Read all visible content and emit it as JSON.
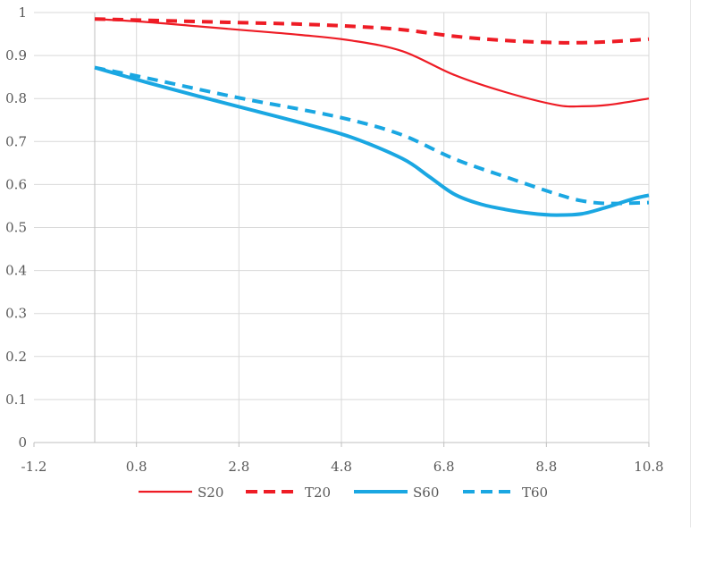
{
  "chart_data": {
    "type": "line",
    "title": "",
    "xlabel": "",
    "ylabel": "",
    "xlim": [
      -1.2,
      10.8
    ],
    "ylim": [
      0,
      1
    ],
    "x_ticks": [
      -1.2,
      0.8,
      2.8,
      4.8,
      6.8,
      8.8,
      10.8
    ],
    "x_tick_labels": [
      "-1.2",
      "0.8",
      "2.8",
      "4.8",
      "6.8",
      "8.8",
      "10.8"
    ],
    "y_ticks": [
      0,
      0.1,
      0.2,
      0.3,
      0.4,
      0.5,
      0.6,
      0.7,
      0.8,
      0.9,
      1
    ],
    "y_tick_labels": [
      "0",
      "0.1",
      "0.2",
      "0.3",
      "0.4",
      "0.5",
      "0.6",
      "0.7",
      "0.8",
      "0.9",
      "1"
    ],
    "grid": true,
    "legend_position": "bottom",
    "series": [
      {
        "name": "S20",
        "color": "#ee1c25",
        "style": "solid",
        "weight": "thin",
        "x": [
          0,
          1,
          2,
          3,
          4,
          5,
          6,
          7,
          8,
          9,
          9.5,
          10,
          10.8
        ],
        "y": [
          0.985,
          0.978,
          0.968,
          0.958,
          0.948,
          0.935,
          0.91,
          0.855,
          0.815,
          0.785,
          0.782,
          0.785,
          0.8
        ]
      },
      {
        "name": "T20",
        "color": "#ee1c25",
        "style": "dashed",
        "weight": "thick",
        "x": [
          0,
          1,
          2,
          3,
          4,
          5,
          6,
          7,
          8,
          9,
          9.5,
          10,
          10.8
        ],
        "y": [
          0.985,
          0.982,
          0.979,
          0.976,
          0.973,
          0.968,
          0.96,
          0.945,
          0.935,
          0.93,
          0.93,
          0.932,
          0.938
        ]
      },
      {
        "name": "S60",
        "color": "#1aa7e2",
        "style": "solid",
        "weight": "thick",
        "x": [
          0,
          1,
          2,
          3,
          4,
          5,
          6,
          6.5,
          7,
          7.5,
          8,
          8.5,
          9,
          9.5,
          10,
          10.5,
          10.8
        ],
        "y": [
          0.872,
          0.838,
          0.806,
          0.775,
          0.744,
          0.71,
          0.66,
          0.62,
          0.578,
          0.555,
          0.542,
          0.533,
          0.529,
          0.532,
          0.548,
          0.567,
          0.575
        ]
      },
      {
        "name": "T60",
        "color": "#1aa7e2",
        "style": "dashed",
        "weight": "thick",
        "x": [
          0,
          1,
          2,
          3,
          4,
          5,
          6,
          7,
          8,
          9,
          9.5,
          10,
          10.8
        ],
        "y": [
          0.872,
          0.848,
          0.822,
          0.797,
          0.775,
          0.75,
          0.715,
          0.66,
          0.618,
          0.578,
          0.562,
          0.556,
          0.558
        ]
      }
    ]
  }
}
